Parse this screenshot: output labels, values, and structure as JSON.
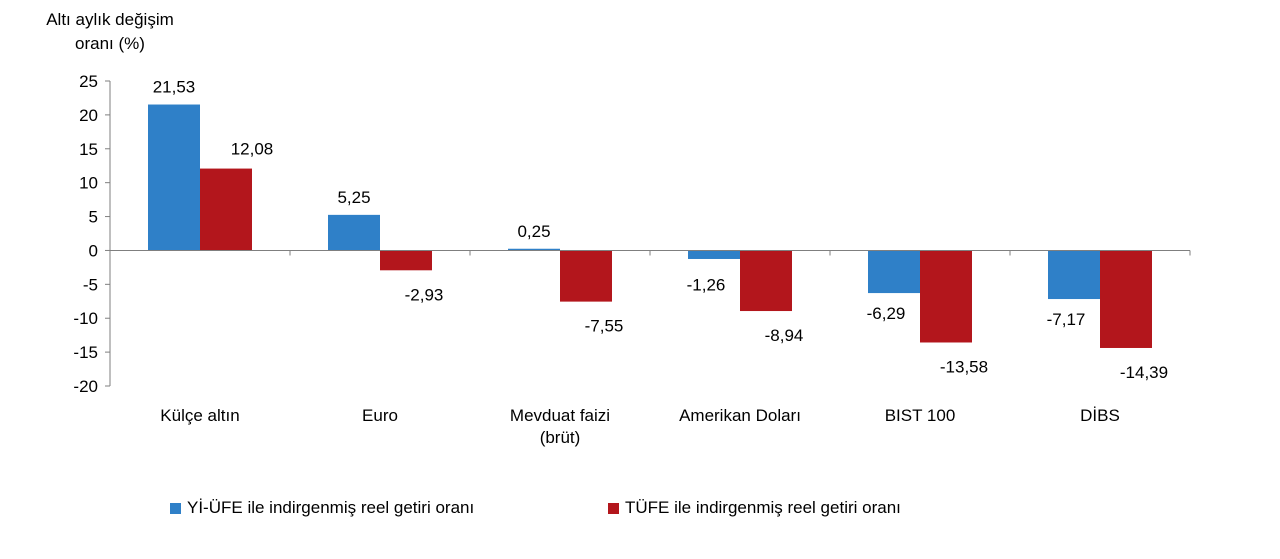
{
  "chart_data": {
    "type": "bar",
    "title": "",
    "ylabel_lines": [
      "Altı aylık değişim",
      "oranı (%)"
    ],
    "xlabel": "",
    "ylim": [
      -20,
      25
    ],
    "yticks": [
      25,
      20,
      15,
      10,
      5,
      0,
      -5,
      -10,
      -15,
      -20
    ],
    "categories": [
      [
        "Külçe altın"
      ],
      [
        "Euro"
      ],
      [
        "Mevduat faizi",
        "(brüt)"
      ],
      [
        "Amerikan Doları"
      ],
      [
        "BIST 100"
      ],
      [
        "DİBS"
      ]
    ],
    "series": [
      {
        "name": "Yİ-ÜFE ile indirgenmiş reel getiri oranı",
        "color": "#2f80c8",
        "values": [
          21.53,
          5.25,
          0.25,
          -1.26,
          -6.29,
          -7.17
        ],
        "labels": [
          "21,53",
          "5,25",
          "0,25",
          "-1,26",
          "-6,29",
          "-7,17"
        ]
      },
      {
        "name": "TÜFE ile indirgenmiş reel getiri oranı",
        "color": "#b3161c",
        "values": [
          12.08,
          -2.93,
          -7.55,
          -8.94,
          -13.58,
          -14.39
        ],
        "labels": [
          "12,08",
          "-2,93",
          "-7,55",
          "-8,94",
          "-13,58",
          "-14,39"
        ]
      }
    ],
    "grid": false,
    "legend_position": "bottom"
  }
}
